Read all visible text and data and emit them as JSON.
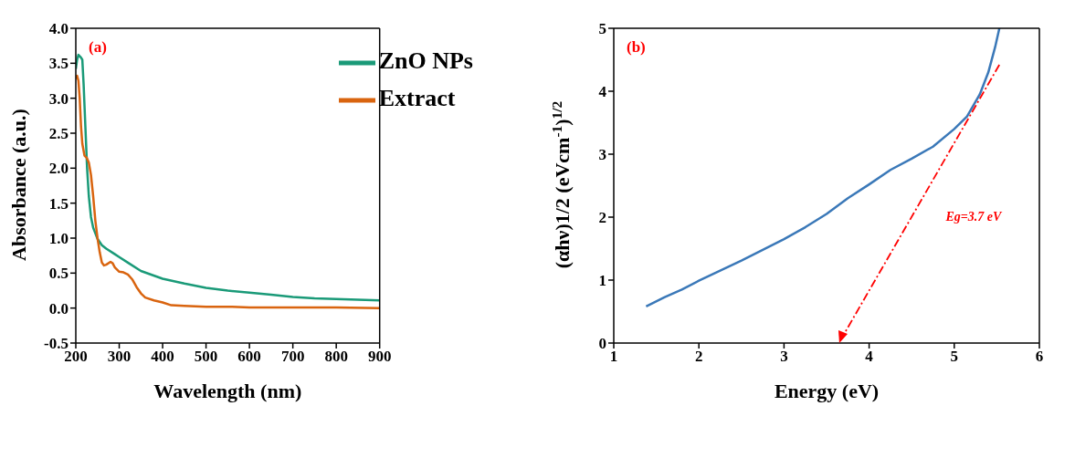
{
  "chart_data": [
    {
      "type": "line",
      "xlabel": "Wavelength (nm)",
      "ylabel": "Absorbance (a.u.)",
      "annotations": [
        "(a)"
      ],
      "legend": "top right",
      "marker": "none",
      "line_style": "solid",
      "xlim": [
        200,
        900
      ],
      "xticks": [
        200,
        300,
        400,
        500,
        600,
        700,
        800,
        900
      ],
      "ylim": [
        -0.5,
        4.0
      ],
      "yticks": [
        {
          "value": -0.5,
          "label": "-0.5"
        },
        {
          "value": 0,
          "label": "0.0"
        },
        0.5,
        {
          "value": 1,
          "label": "1.0"
        },
        1.5,
        {
          "value": 2,
          "label": "2.0"
        },
        2.5,
        {
          "value": 3,
          "label": "3.0"
        },
        3.5,
        {
          "value": 4,
          "label": "4.0"
        }
      ],
      "series": [
        {
          "name": "ZnO NPs",
          "color": "#1a9a78",
          "x": [
            200,
            203,
            206,
            209,
            212,
            215,
            218,
            222,
            226,
            230,
            235,
            240,
            250,
            260,
            270,
            290,
            300,
            320,
            350,
            400,
            450,
            500,
            550,
            600,
            650,
            700,
            750,
            800,
            850,
            900
          ],
          "values": [
            3.42,
            3.55,
            3.62,
            3.6,
            3.58,
            3.55,
            3.2,
            2.6,
            2.0,
            1.6,
            1.3,
            1.15,
            0.99,
            0.9,
            0.85,
            0.77,
            0.73,
            0.65,
            0.53,
            0.42,
            0.35,
            0.29,
            0.25,
            0.22,
            0.19,
            0.16,
            0.14,
            0.13,
            0.12,
            0.11
          ]
        },
        {
          "name": "Extract",
          "color": "#d9640f",
          "x": [
            200,
            203,
            206,
            209,
            212,
            215,
            220,
            225,
            230,
            235,
            240,
            245,
            250,
            255,
            260,
            265,
            270,
            280,
            285,
            290,
            300,
            310,
            320,
            330,
            340,
            350,
            360,
            380,
            400,
            420,
            450,
            500,
            540,
            560,
            600,
            700,
            800,
            900
          ],
          "values": [
            3.28,
            3.32,
            3.25,
            3.0,
            2.6,
            2.35,
            2.18,
            2.15,
            2.08,
            1.9,
            1.6,
            1.25,
            1.0,
            0.8,
            0.65,
            0.61,
            0.62,
            0.66,
            0.64,
            0.58,
            0.52,
            0.51,
            0.48,
            0.41,
            0.3,
            0.21,
            0.15,
            0.11,
            0.08,
            0.04,
            0.03,
            0.02,
            0.02,
            0.02,
            0.01,
            0.01,
            0.01,
            0.0
          ]
        }
      ]
    },
    {
      "type": "line",
      "xlabel": "Energy (eV)",
      "ylabel": "(αhν)1/2 (eVcm$^{-1}$)$^{1/2}$",
      "annotations": [
        "(b)",
        "Eg=3.7 eV"
      ],
      "marker": "none",
      "xlim": [
        1,
        6
      ],
      "xticks": [
        1,
        2,
        3,
        4,
        5,
        6
      ],
      "ylim": [
        0,
        5
      ],
      "yticks": [
        0,
        1,
        2,
        3,
        4,
        5
      ],
      "series": [
        {
          "color": "#3a78b8",
          "line_style": "solid",
          "x": [
            1.38,
            1.6,
            1.8,
            2,
            2.25,
            2.5,
            2.75,
            3,
            3.25,
            3.5,
            3.75,
            4,
            4.25,
            4.5,
            4.75,
            5,
            5.15,
            5.3,
            5.4,
            5.48,
            5.53
          ],
          "values": [
            0.58,
            0.73,
            0.85,
            0.99,
            1.15,
            1.31,
            1.48,
            1.65,
            1.84,
            2.05,
            2.3,
            2.52,
            2.75,
            2.93,
            3.12,
            3.4,
            3.6,
            3.95,
            4.3,
            4.7,
            5.0
          ]
        }
      ]
    }
  ]
}
